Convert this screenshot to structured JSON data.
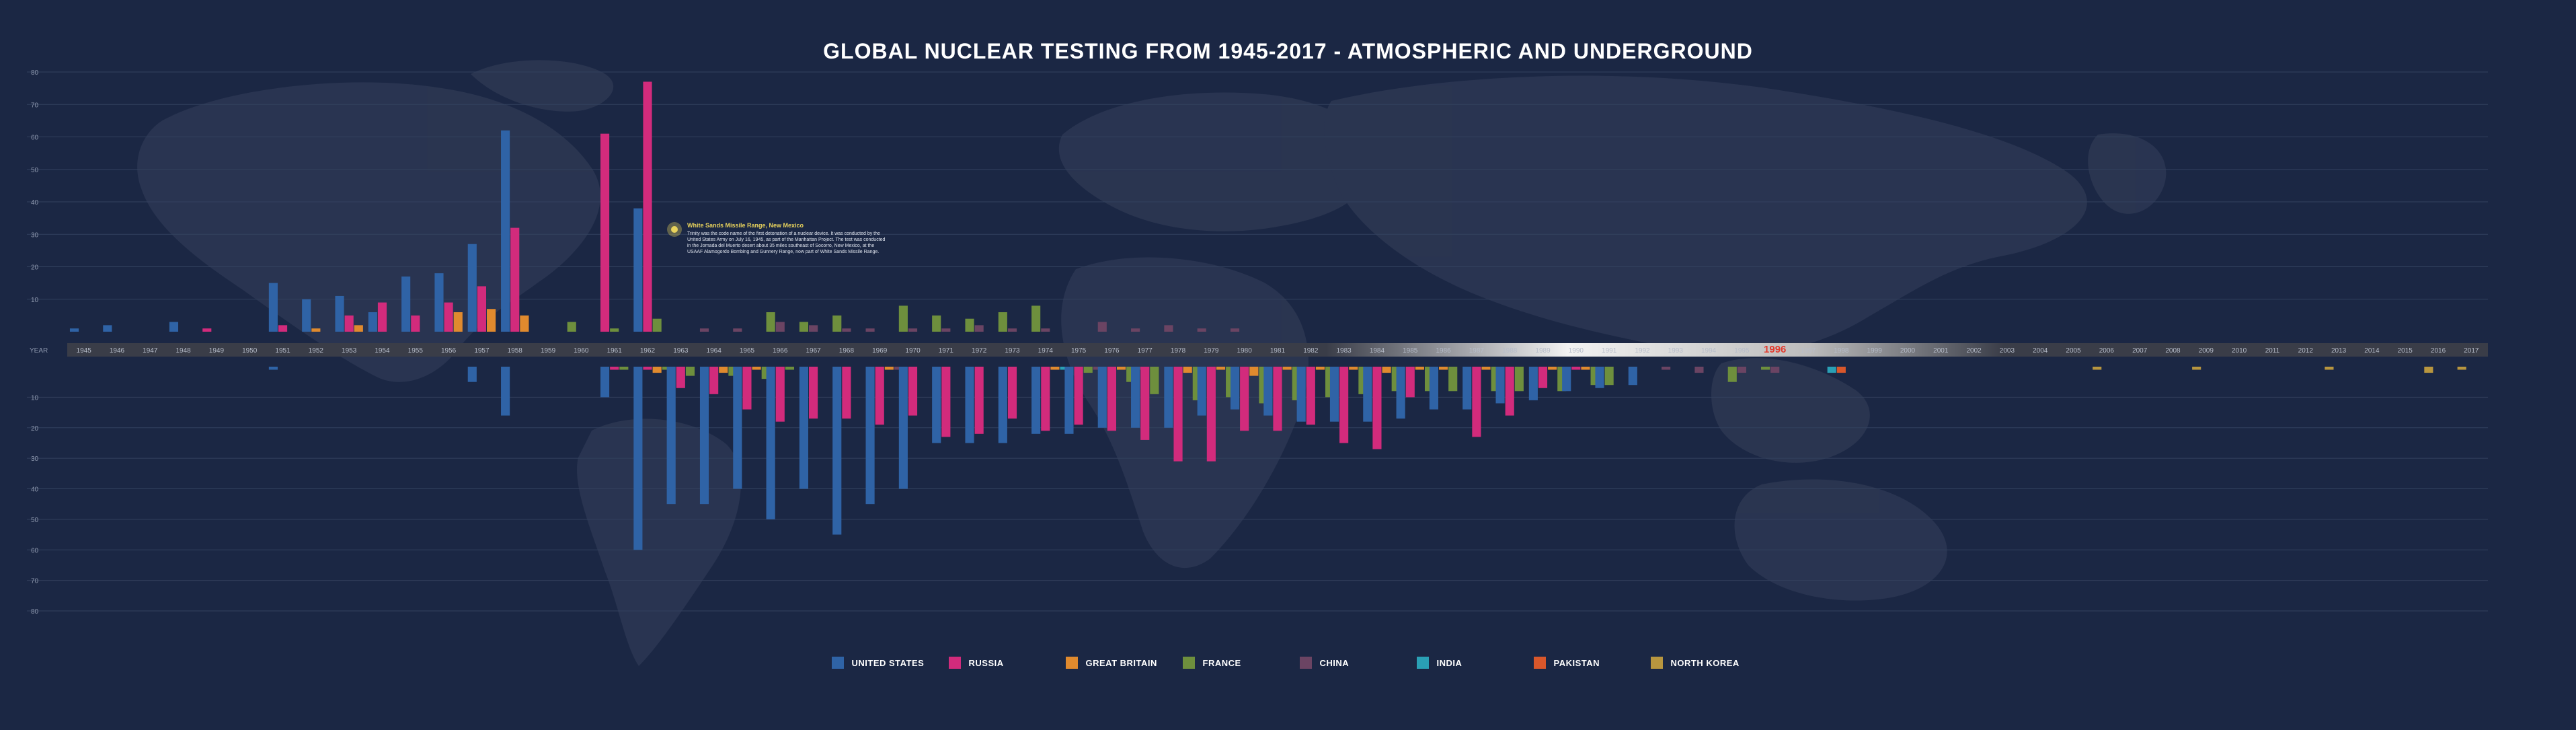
{
  "page": {
    "title": "GLOBAL NUCLEAR TESTING  FROM 1945-2017 - ATMOSPHERIC AND UNDERGROUND"
  },
  "annotation": {
    "title": "White Sands Missile Range, New Mexico",
    "body": "Trinity was the code name of the first detonation of a nuclear device. It was conducted by the United States Army on July 16, 1945, as part of the Manhattan Project. The test was conducted in the Jornada del Muerto desert about 35 miles southeast of Socorro, New Mexico, at the USAAF Alamogordo Bombing and Gunnery Range, now part of White Sands Missile Range."
  },
  "colors": {
    "background": "#1b2744",
    "timeline_band": "#3a3d48",
    "highlight_year": "#e23b2e",
    "grid": "#33415e",
    "annotation_title": "#e9d35c"
  },
  "chart_data": {
    "type": "bar",
    "title": "GLOBAL NUCLEAR TESTING  FROM 1945-2017 - ATMOSPHERIC AND UNDERGROUND",
    "axis_label": "YEAR",
    "highlight_year": "1996",
    "grid": true,
    "legend_position": "bottom-center",
    "y_ticks_top": [
      "80",
      "70",
      "60",
      "50",
      "40",
      "30",
      "20",
      "10"
    ],
    "y_ticks_bottom": [
      "10",
      "20",
      "30",
      "40",
      "50",
      "60",
      "70",
      "80"
    ],
    "ylim": [
      0,
      80
    ],
    "years": [
      "1945",
      "1946",
      "1947",
      "1948",
      "1949",
      "1950",
      "1951",
      "1952",
      "1953",
      "1954",
      "1955",
      "1956",
      "1957",
      "1958",
      "1959",
      "1960",
      "1961",
      "1962",
      "1963",
      "1964",
      "1965",
      "1966",
      "1967",
      "1968",
      "1969",
      "1970",
      "1971",
      "1972",
      "1973",
      "1974",
      "1975",
      "1976",
      "1977",
      "1978",
      "1979",
      "1980",
      "1981",
      "1982",
      "1983",
      "1984",
      "1985",
      "1986",
      "1987",
      "1988",
      "1989",
      "1990",
      "1991",
      "1992",
      "1993",
      "1994",
      "1995",
      "1996",
      "1997",
      "1998",
      "1999",
      "2000",
      "2001",
      "2002",
      "2003",
      "2004",
      "2005",
      "2006",
      "2007",
      "2008",
      "2009",
      "2010",
      "2011",
      "2012",
      "2013",
      "2014",
      "2015",
      "2016",
      "2017"
    ],
    "series": [
      {
        "name": "UNITED STATES",
        "color": "#2f63a6",
        "atmospheric": [
          1,
          2,
          0,
          3,
          0,
          0,
          15,
          10,
          11,
          6,
          17,
          18,
          27,
          62,
          0,
          0,
          0,
          38,
          0,
          0,
          0,
          0,
          0,
          0,
          0,
          0,
          0,
          0,
          0,
          0,
          0,
          0,
          0,
          0,
          0,
          0,
          0,
          0,
          0,
          0,
          0,
          0,
          0,
          0,
          0,
          0,
          0,
          0,
          0,
          0,
          0,
          0,
          0,
          0,
          0,
          0,
          0,
          0,
          0,
          0,
          0,
          0,
          0,
          0,
          0,
          0,
          0,
          0,
          0,
          0,
          0,
          0,
          0
        ],
        "underground": [
          0,
          0,
          0,
          0,
          0,
          0,
          1,
          0,
          0,
          0,
          0,
          0,
          5,
          16,
          0,
          0,
          10,
          60,
          45,
          45,
          40,
          50,
          40,
          55,
          45,
          40,
          25,
          25,
          25,
          22,
          22,
          20,
          20,
          20,
          16,
          14,
          16,
          18,
          18,
          18,
          17,
          14,
          14,
          12,
          11,
          8,
          7,
          6,
          0,
          0,
          0,
          0,
          0,
          0,
          0,
          0,
          0,
          0,
          0,
          0,
          0,
          0,
          0,
          0,
          0,
          0,
          0,
          0,
          0,
          0,
          0,
          0,
          0
        ]
      },
      {
        "name": "RUSSIA",
        "color": "#d22b7c",
        "atmospheric": [
          0,
          0,
          0,
          0,
          1,
          0,
          2,
          0,
          5,
          9,
          5,
          9,
          14,
          32,
          0,
          0,
          61,
          77,
          0,
          0,
          0,
          0,
          0,
          0,
          0,
          0,
          0,
          0,
          0,
          0,
          0,
          0,
          0,
          0,
          0,
          0,
          0,
          0,
          0,
          0,
          0,
          0,
          0,
          0,
          0,
          0,
          0,
          0,
          0,
          0,
          0,
          0,
          0,
          0,
          0,
          0,
          0,
          0,
          0,
          0,
          0,
          0,
          0,
          0,
          0,
          0,
          0,
          0,
          0,
          0,
          0,
          0,
          0
        ],
        "underground": [
          0,
          0,
          0,
          0,
          0,
          0,
          0,
          0,
          0,
          0,
          0,
          0,
          0,
          0,
          0,
          0,
          1,
          1,
          7,
          9,
          14,
          18,
          17,
          17,
          19,
          16,
          23,
          22,
          17,
          21,
          19,
          21,
          24,
          31,
          31,
          21,
          21,
          19,
          25,
          27,
          10,
          0,
          23,
          16,
          7,
          1,
          0,
          0,
          0,
          0,
          0,
          0,
          0,
          0,
          0,
          0,
          0,
          0,
          0,
          0,
          0,
          0,
          0,
          0,
          0,
          0,
          0,
          0,
          0,
          0,
          0,
          0,
          0
        ]
      },
      {
        "name": "GREAT BRITAIN",
        "color": "#e08a2e",
        "atmospheric": [
          0,
          0,
          0,
          0,
          0,
          0,
          0,
          1,
          2,
          0,
          0,
          6,
          7,
          5,
          0,
          0,
          0,
          0,
          0,
          0,
          0,
          0,
          0,
          0,
          0,
          0,
          0,
          0,
          0,
          0,
          0,
          0,
          0,
          0,
          0,
          0,
          0,
          0,
          0,
          0,
          0,
          0,
          0,
          0,
          0,
          0,
          0,
          0,
          0,
          0,
          0,
          0,
          0,
          0,
          0,
          0,
          0,
          0,
          0,
          0,
          0,
          0,
          0,
          0,
          0,
          0,
          0,
          0,
          0,
          0,
          0,
          0,
          0
        ],
        "underground": [
          0,
          0,
          0,
          0,
          0,
          0,
          0,
          0,
          0,
          0,
          0,
          0,
          0,
          0,
          0,
          0,
          0,
          2,
          0,
          2,
          1,
          0,
          0,
          0,
          1,
          0,
          0,
          0,
          0,
          1,
          0,
          1,
          0,
          2,
          1,
          3,
          1,
          1,
          1,
          2,
          1,
          1,
          1,
          0,
          1,
          1,
          0,
          0,
          0,
          0,
          0,
          0,
          0,
          0,
          0,
          0,
          0,
          0,
          0,
          0,
          0,
          0,
          0,
          0,
          0,
          0,
          0,
          0,
          0,
          0,
          0,
          0,
          0
        ]
      },
      {
        "name": "FRANCE",
        "color": "#6e8f3d",
        "atmospheric": [
          0,
          0,
          0,
          0,
          0,
          0,
          0,
          0,
          0,
          0,
          0,
          0,
          0,
          0,
          0,
          3,
          1,
          4,
          0,
          0,
          0,
          6,
          3,
          5,
          0,
          8,
          5,
          4,
          6,
          8,
          0,
          0,
          0,
          0,
          0,
          0,
          0,
          0,
          0,
          0,
          0,
          0,
          0,
          0,
          0,
          0,
          0,
          0,
          0,
          0,
          0,
          0,
          0,
          0,
          0,
          0,
          0,
          0,
          0,
          0,
          0,
          0,
          0,
          0,
          0,
          0,
          0,
          0,
          0,
          0,
          0,
          0,
          0
        ],
        "underground": [
          0,
          0,
          0,
          0,
          0,
          0,
          0,
          0,
          0,
          0,
          0,
          0,
          0,
          0,
          0,
          0,
          1,
          1,
          3,
          3,
          4,
          1,
          0,
          0,
          0,
          0,
          0,
          0,
          0,
          0,
          2,
          5,
          9,
          11,
          10,
          12,
          11,
          10,
          9,
          8,
          8,
          8,
          8,
          8,
          8,
          6,
          6,
          0,
          0,
          0,
          5,
          1,
          0,
          0,
          0,
          0,
          0,
          0,
          0,
          0,
          0,
          0,
          0,
          0,
          0,
          0,
          0,
          0,
          0,
          0,
          0,
          0,
          0
        ]
      },
      {
        "name": "CHINA",
        "color": "#6b4463",
        "atmospheric": [
          0,
          0,
          0,
          0,
          0,
          0,
          0,
          0,
          0,
          0,
          0,
          0,
          0,
          0,
          0,
          0,
          0,
          0,
          0,
          1,
          1,
          3,
          2,
          1,
          1,
          1,
          1,
          2,
          1,
          1,
          0,
          3,
          1,
          2,
          1,
          1,
          0,
          0,
          0,
          0,
          0,
          0,
          0,
          0,
          0,
          0,
          0,
          0,
          0,
          0,
          0,
          0,
          0,
          0,
          0,
          0,
          0,
          0,
          0,
          0,
          0,
          0,
          0,
          0,
          0,
          0,
          0,
          0,
          0,
          0,
          0,
          0,
          0
        ],
        "underground": [
          0,
          0,
          0,
          0,
          0,
          0,
          0,
          0,
          0,
          0,
          0,
          0,
          0,
          0,
          0,
          0,
          0,
          0,
          0,
          0,
          0,
          0,
          0,
          0,
          1,
          0,
          0,
          0,
          0,
          0,
          1,
          1,
          0,
          0,
          0,
          0,
          0,
          0,
          0,
          0,
          0,
          0,
          0,
          0,
          0,
          0,
          0,
          0,
          1,
          2,
          2,
          2,
          0,
          0,
          0,
          0,
          0,
          0,
          0,
          0,
          0,
          0,
          0,
          0,
          0,
          0,
          0,
          0,
          0,
          0,
          0,
          0,
          0
        ]
      },
      {
        "name": "INDIA",
        "color": "#2aa0b5",
        "atmospheric": [
          0,
          0,
          0,
          0,
          0,
          0,
          0,
          0,
          0,
          0,
          0,
          0,
          0,
          0,
          0,
          0,
          0,
          0,
          0,
          0,
          0,
          0,
          0,
          0,
          0,
          0,
          0,
          0,
          0,
          0,
          0,
          0,
          0,
          0,
          0,
          0,
          0,
          0,
          0,
          0,
          0,
          0,
          0,
          0,
          0,
          0,
          0,
          0,
          0,
          0,
          0,
          0,
          0,
          0,
          0,
          0,
          0,
          0,
          0,
          0,
          0,
          0,
          0,
          0,
          0,
          0,
          0,
          0,
          0,
          0,
          0,
          0,
          0
        ],
        "underground": [
          0,
          0,
          0,
          0,
          0,
          0,
          0,
          0,
          0,
          0,
          0,
          0,
          0,
          0,
          0,
          0,
          0,
          0,
          0,
          0,
          0,
          0,
          0,
          0,
          0,
          0,
          0,
          0,
          0,
          1,
          0,
          0,
          0,
          0,
          0,
          0,
          0,
          0,
          0,
          0,
          0,
          0,
          0,
          0,
          0,
          0,
          0,
          0,
          0,
          0,
          0,
          0,
          0,
          2,
          0,
          0,
          0,
          0,
          0,
          0,
          0,
          0,
          0,
          0,
          0,
          0,
          0,
          0,
          0,
          0,
          0,
          0,
          0
        ]
      },
      {
        "name": "PAKISTAN",
        "color": "#d9572b",
        "atmospheric": [
          0,
          0,
          0,
          0,
          0,
          0,
          0,
          0,
          0,
          0,
          0,
          0,
          0,
          0,
          0,
          0,
          0,
          0,
          0,
          0,
          0,
          0,
          0,
          0,
          0,
          0,
          0,
          0,
          0,
          0,
          0,
          0,
          0,
          0,
          0,
          0,
          0,
          0,
          0,
          0,
          0,
          0,
          0,
          0,
          0,
          0,
          0,
          0,
          0,
          0,
          0,
          0,
          0,
          0,
          0,
          0,
          0,
          0,
          0,
          0,
          0,
          0,
          0,
          0,
          0,
          0,
          0,
          0,
          0,
          0,
          0,
          0,
          0
        ],
        "underground": [
          0,
          0,
          0,
          0,
          0,
          0,
          0,
          0,
          0,
          0,
          0,
          0,
          0,
          0,
          0,
          0,
          0,
          0,
          0,
          0,
          0,
          0,
          0,
          0,
          0,
          0,
          0,
          0,
          0,
          0,
          0,
          0,
          0,
          0,
          0,
          0,
          0,
          0,
          0,
          0,
          0,
          0,
          0,
          0,
          0,
          0,
          0,
          0,
          0,
          0,
          0,
          0,
          0,
          2,
          0,
          0,
          0,
          0,
          0,
          0,
          0,
          0,
          0,
          0,
          0,
          0,
          0,
          0,
          0,
          0,
          0,
          0,
          0
        ]
      },
      {
        "name": "NORTH KOREA",
        "color": "#b8963f",
        "atmospheric": [
          0,
          0,
          0,
          0,
          0,
          0,
          0,
          0,
          0,
          0,
          0,
          0,
          0,
          0,
          0,
          0,
          0,
          0,
          0,
          0,
          0,
          0,
          0,
          0,
          0,
          0,
          0,
          0,
          0,
          0,
          0,
          0,
          0,
          0,
          0,
          0,
          0,
          0,
          0,
          0,
          0,
          0,
          0,
          0,
          0,
          0,
          0,
          0,
          0,
          0,
          0,
          0,
          0,
          0,
          0,
          0,
          0,
          0,
          0,
          0,
          0,
          0,
          0,
          0,
          0,
          0,
          0,
          0,
          0,
          0,
          0,
          0,
          0
        ],
        "underground": [
          0,
          0,
          0,
          0,
          0,
          0,
          0,
          0,
          0,
          0,
          0,
          0,
          0,
          0,
          0,
          0,
          0,
          0,
          0,
          0,
          0,
          0,
          0,
          0,
          0,
          0,
          0,
          0,
          0,
          0,
          0,
          0,
          0,
          0,
          0,
          0,
          0,
          0,
          0,
          0,
          0,
          0,
          0,
          0,
          0,
          0,
          0,
          0,
          0,
          0,
          0,
          0,
          0,
          0,
          0,
          0,
          0,
          0,
          0,
          0,
          0,
          1,
          0,
          0,
          1,
          0,
          0,
          0,
          1,
          0,
          0,
          2,
          1
        ]
      }
    ]
  }
}
